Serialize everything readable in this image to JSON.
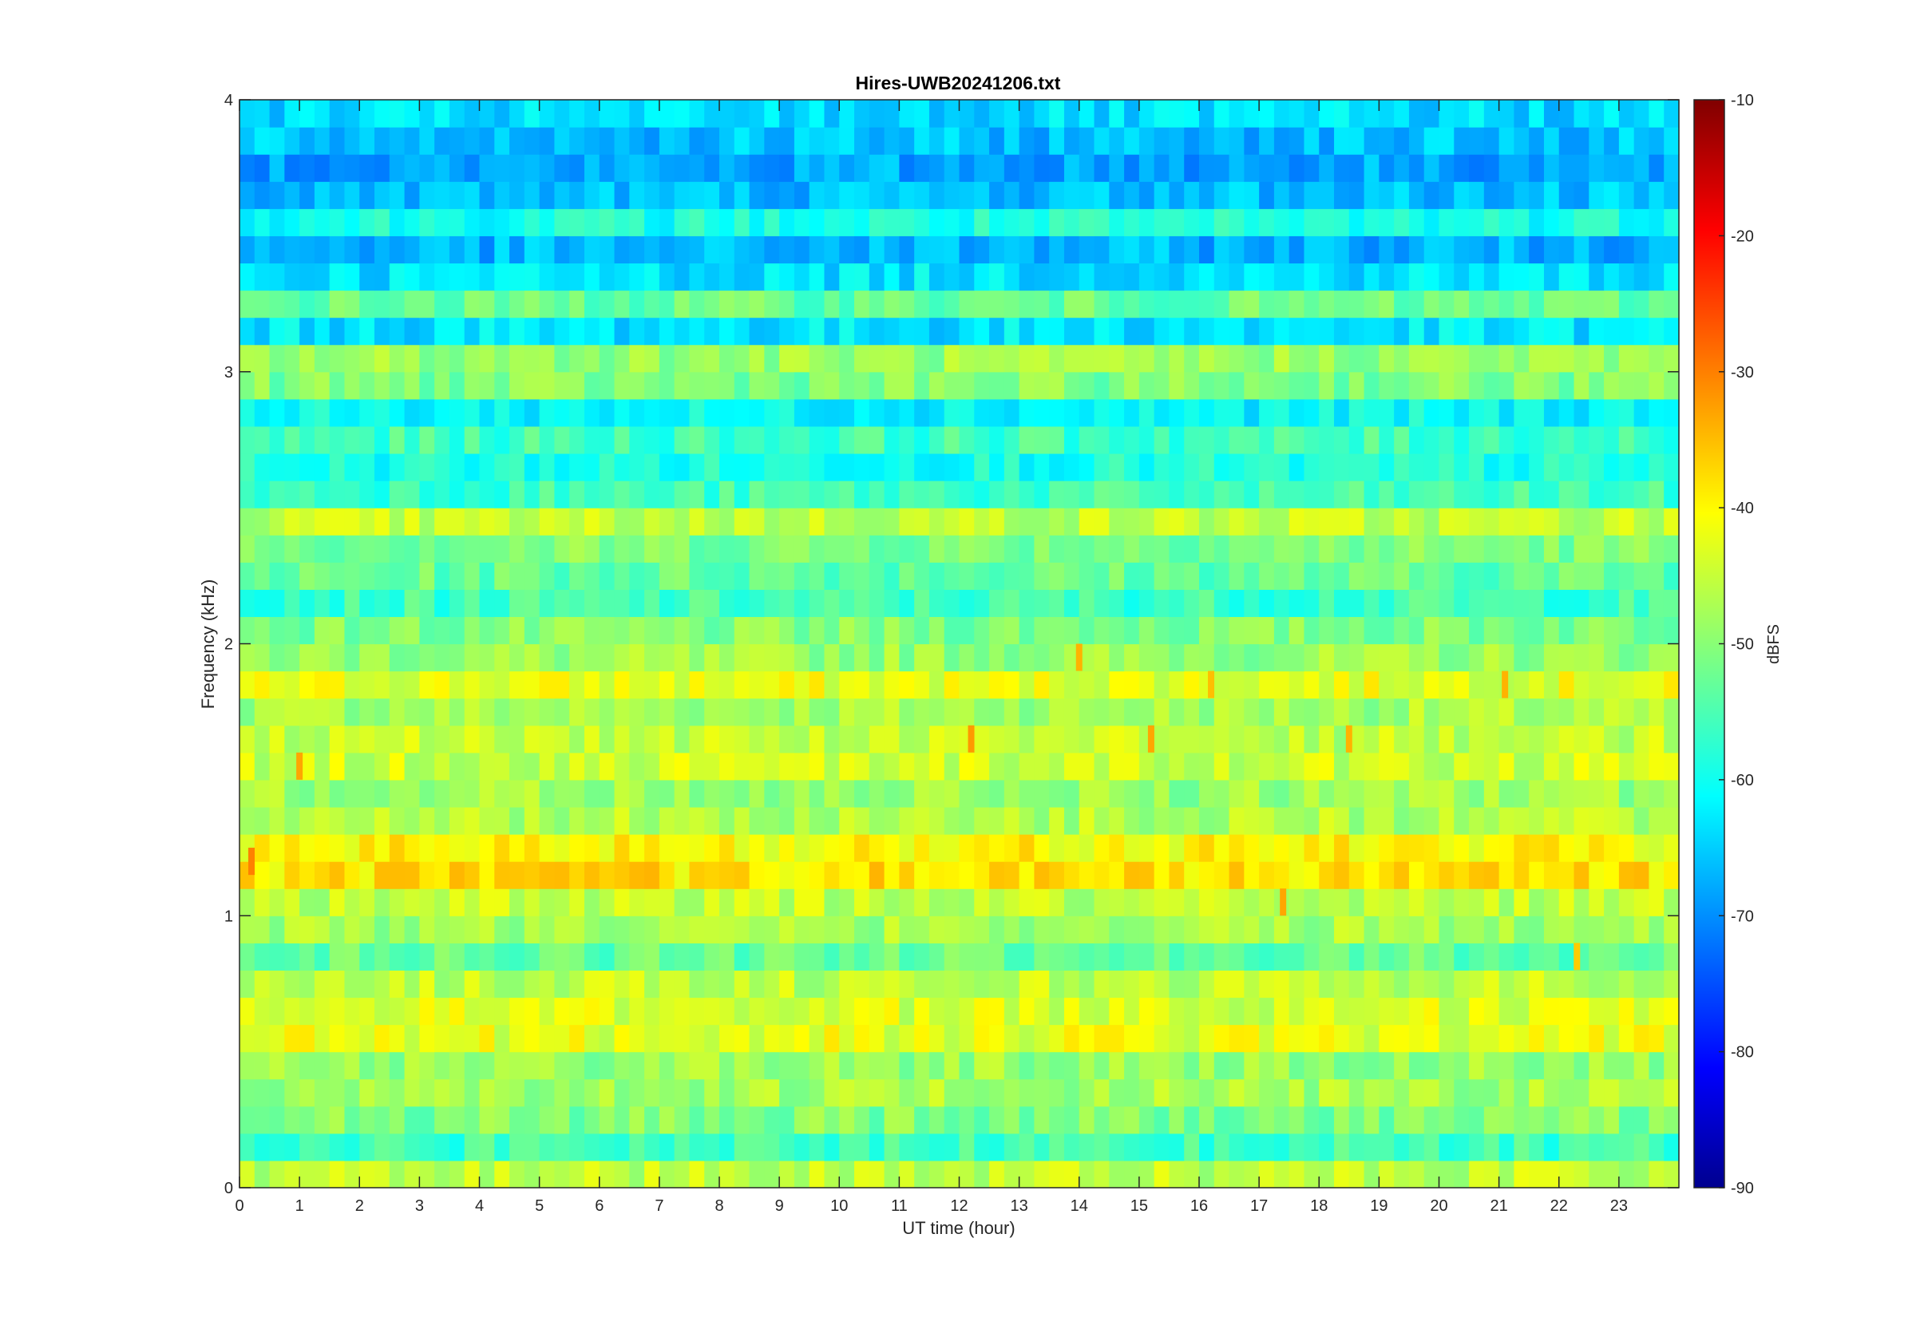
{
  "chart_data": {
    "type": "heatmap",
    "title": "Hires-UWB20241206.txt",
    "xlabel": "UT time (hour)",
    "ylabel": "Frequency (kHz)",
    "xlim": [
      0,
      24
    ],
    "ylim": [
      0,
      4
    ],
    "x_ticks": [
      "0",
      "1",
      "2",
      "3",
      "4",
      "5",
      "6",
      "7",
      "8",
      "9",
      "10",
      "11",
      "12",
      "13",
      "14",
      "15",
      "16",
      "17",
      "18",
      "19",
      "20",
      "21",
      "22",
      "23"
    ],
    "y_ticks": [
      "0",
      "1",
      "2",
      "3",
      "4"
    ],
    "colorbar": {
      "label": "dBFS",
      "range": [
        -90,
        -10
      ],
      "ticks": [
        "-10",
        "-20",
        "-30",
        "-40",
        "-50",
        "-60",
        "-70",
        "-80",
        "-90"
      ],
      "colormap": "jet"
    },
    "frequency_bands_khz": [
      0.05,
      0.15,
      0.25,
      0.35,
      0.45,
      0.55,
      0.65,
      0.75,
      0.85,
      0.95,
      1.05,
      1.15,
      1.25,
      1.35,
      1.45,
      1.55,
      1.65,
      1.75,
      1.85,
      1.95,
      2.05,
      2.15,
      2.25,
      2.35,
      2.45,
      2.55,
      2.65,
      2.75,
      2.85,
      2.95,
      3.05,
      3.15,
      3.25,
      3.35,
      3.45,
      3.55,
      3.65,
      3.75,
      3.85,
      3.95
    ],
    "band_level_dbfs": [
      -45,
      -55,
      -50,
      -47,
      -48,
      -42,
      -43,
      -45,
      -52,
      -47,
      -45,
      -38,
      -40,
      -46,
      -48,
      -44,
      -45,
      -47,
      -42,
      -48,
      -50,
      -55,
      -52,
      -50,
      -45,
      -55,
      -58,
      -55,
      -60,
      -50,
      -48,
      -62,
      -52,
      -62,
      -66,
      -58,
      -65,
      -67,
      -65,
      -63
    ],
    "bursts": [
      {
        "x_hour": 0.2,
        "y_khz": 1.2,
        "dbfs": -30
      },
      {
        "x_hour": 1.0,
        "y_khz": 1.55,
        "dbfs": -33
      },
      {
        "x_hour": 12.2,
        "y_khz": 1.65,
        "dbfs": -32
      },
      {
        "x_hour": 14.0,
        "y_khz": 1.95,
        "dbfs": -34
      },
      {
        "x_hour": 15.2,
        "y_khz": 1.65,
        "dbfs": -33
      },
      {
        "x_hour": 16.2,
        "y_khz": 1.85,
        "dbfs": -35
      },
      {
        "x_hour": 17.4,
        "y_khz": 1.05,
        "dbfs": -33
      },
      {
        "x_hour": 18.5,
        "y_khz": 1.65,
        "dbfs": -34
      },
      {
        "x_hour": 21.1,
        "y_khz": 1.85,
        "dbfs": -34
      },
      {
        "x_hour": 22.3,
        "y_khz": 0.85,
        "dbfs": -36
      }
    ],
    "grid": false,
    "legend": "none"
  }
}
